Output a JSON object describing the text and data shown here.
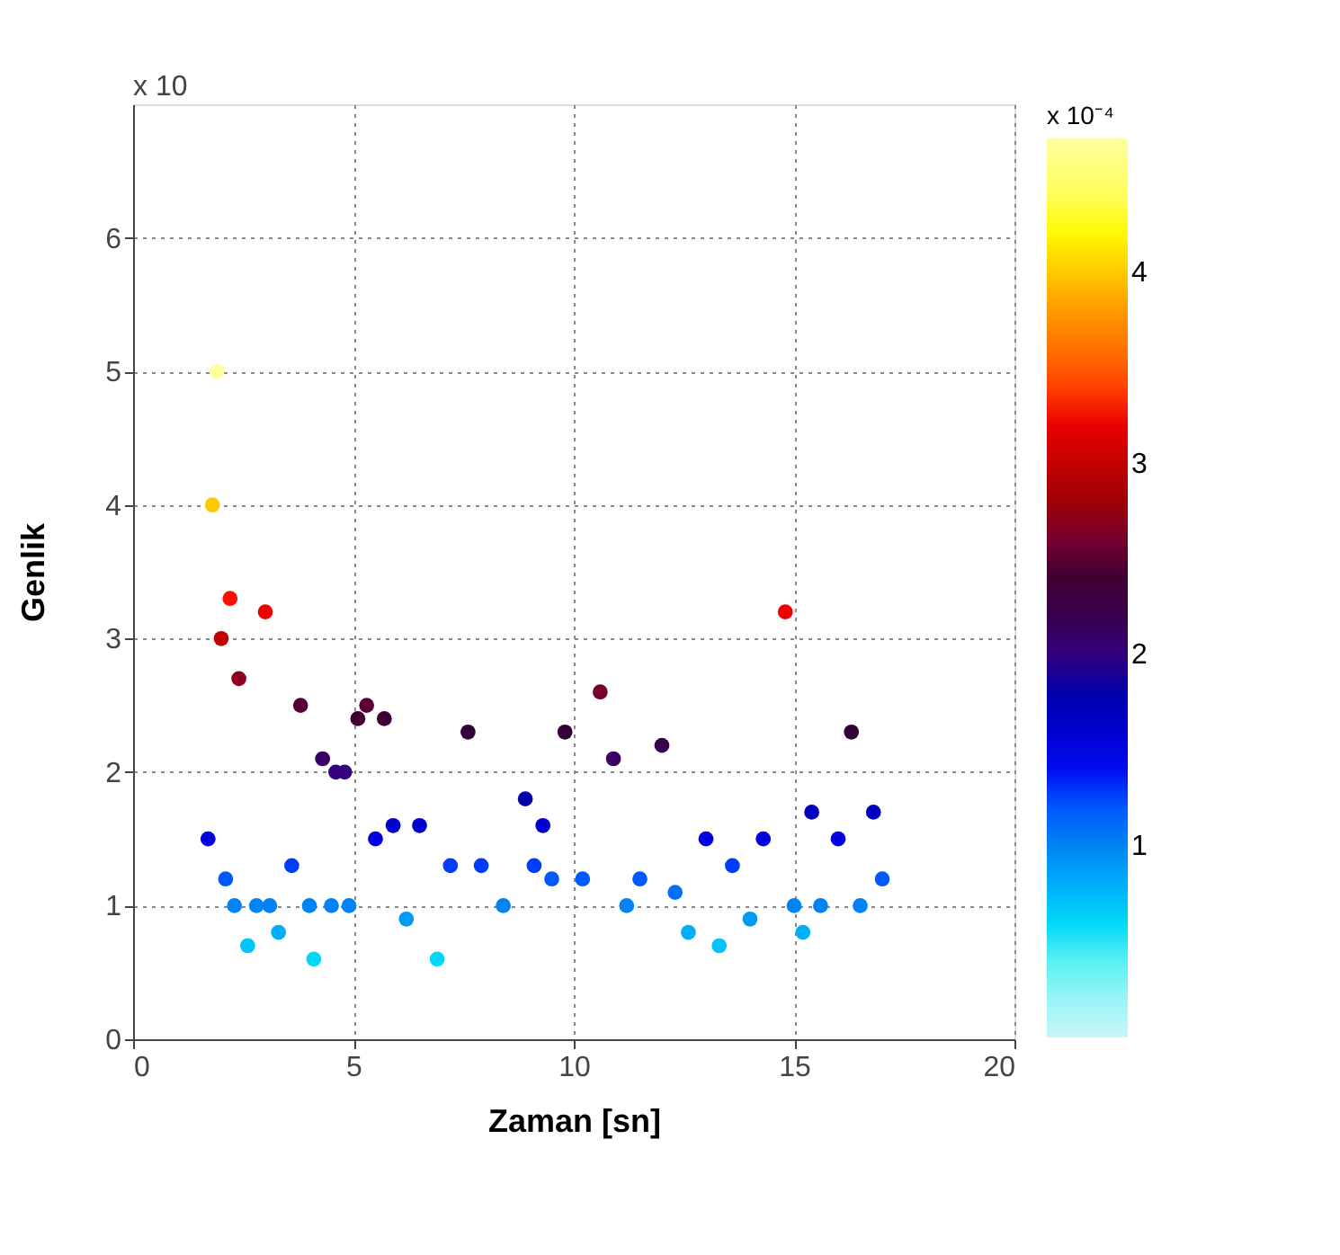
{
  "chart_data": {
    "type": "scatter",
    "xlabel": "Zaman [sn]",
    "ylabel": "Genlik",
    "clabel": "x 10⁻⁴",
    "annotations": [
      "x 10"
    ],
    "x": [
      1.7,
      1.8,
      1.9,
      2.0,
      2.1,
      2.2,
      2.3,
      2.4,
      2.6,
      2.8,
      3.0,
      3.1,
      3.3,
      3.6,
      3.8,
      4.0,
      4.1,
      4.3,
      4.5,
      4.6,
      4.8,
      4.9,
      5.1,
      5.3,
      5.5,
      5.7,
      5.9,
      6.2,
      6.5,
      6.9,
      7.2,
      7.6,
      7.9,
      8.4,
      8.9,
      9.1,
      9.3,
      9.5,
      9.8,
      10.2,
      10.6,
      10.9,
      11.2,
      11.5,
      12.0,
      12.3,
      12.6,
      13.0,
      13.3,
      13.6,
      14.0,
      14.3,
      14.8,
      15.0,
      15.2,
      15.4,
      15.6,
      16.0,
      16.3,
      16.5,
      16.8,
      17.0
    ],
    "values": [
      1.5,
      4.0,
      5.0,
      3.0,
      1.2,
      3.3,
      1.0,
      2.7,
      0.7,
      1.0,
      3.2,
      1.0,
      0.8,
      1.3,
      2.5,
      1.0,
      0.6,
      2.1,
      1.0,
      2.0,
      2.0,
      1.0,
      2.4,
      2.5,
      1.5,
      2.4,
      1.6,
      0.9,
      1.6,
      0.6,
      1.3,
      2.3,
      1.3,
      1.0,
      1.8,
      1.3,
      1.6,
      1.2,
      2.3,
      1.2,
      2.6,
      2.1,
      1.0,
      1.2,
      2.2,
      1.1,
      0.8,
      1.5,
      0.7,
      1.3,
      0.9,
      1.5,
      3.2,
      1.0,
      0.8,
      1.7,
      1.0,
      1.5,
      2.3,
      1.0,
      1.7,
      1.2
    ],
    "cvalues": [
      1.5,
      4.0,
      4.7,
      3.0,
      1.2,
      3.3,
      1.0,
      2.7,
      0.7,
      1.0,
      3.2,
      1.0,
      0.8,
      1.3,
      2.5,
      1.0,
      0.6,
      2.1,
      1.0,
      2.0,
      2.0,
      1.0,
      2.4,
      2.5,
      1.5,
      2.4,
      1.6,
      0.9,
      1.6,
      0.6,
      1.3,
      2.3,
      1.3,
      1.0,
      1.8,
      1.3,
      1.6,
      1.2,
      2.3,
      1.2,
      2.6,
      2.1,
      1.0,
      1.2,
      2.2,
      1.1,
      0.8,
      1.5,
      0.7,
      1.3,
      0.9,
      1.5,
      3.2,
      1.0,
      0.8,
      1.7,
      1.0,
      1.5,
      2.3,
      1.0,
      1.7,
      1.2
    ],
    "xlim": [
      0,
      20
    ],
    "xticks": [
      0,
      5,
      10,
      15,
      20
    ],
    "ylim": [
      0,
      7
    ],
    "yticks": [
      0,
      1,
      2,
      3,
      4,
      5,
      6
    ],
    "clim": [
      0,
      4.7
    ],
    "cticks": [
      1,
      2,
      3,
      4
    ],
    "grid": true,
    "marker": "circle"
  }
}
